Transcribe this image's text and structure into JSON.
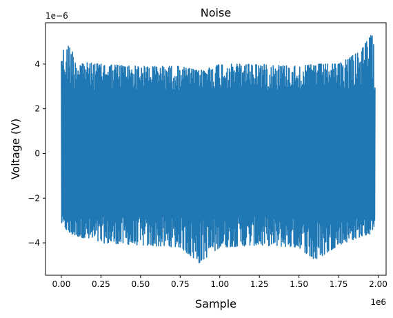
{
  "chart_data": {
    "type": "line",
    "title": "Noise",
    "xlabel": "Sample",
    "ylabel": "Voltage (V)",
    "x_offset_text": "1e6",
    "y_offset_text": "1e−6",
    "xlim": [
      -0.1,
      2.05
    ],
    "ylim": [
      -5.45,
      5.85
    ],
    "x_ticks": [
      0.0,
      0.25,
      0.5,
      0.75,
      1.0,
      1.25,
      1.5,
      1.75,
      2.0
    ],
    "x_tick_labels": [
      "0.00",
      "0.25",
      "0.50",
      "0.75",
      "1.00",
      "1.25",
      "1.50",
      "1.75",
      "2.00"
    ],
    "y_ticks": [
      -4,
      -2,
      0,
      2,
      4
    ],
    "y_tick_labels": [
      "−4",
      "−2",
      "0",
      "2",
      "4"
    ],
    "grid": false,
    "legend": "none",
    "series": [
      {
        "color": "#1f77b4",
        "x_range": [
          0.0,
          1.98
        ],
        "envelope_x": [
          0.0,
          0.02,
          0.05,
          0.1,
          0.25,
          0.5,
          0.75,
          0.87,
          1.0,
          1.25,
          1.5,
          1.6,
          1.75,
          1.9,
          1.95,
          1.98
        ],
        "envelope_upper": [
          5.0,
          4.5,
          4.9,
          4.1,
          4.0,
          3.9,
          3.9,
          3.7,
          4.0,
          4.0,
          3.9,
          4.0,
          4.0,
          4.7,
          5.3,
          5.2
        ],
        "envelope_lower": [
          -3.1,
          -3.3,
          -3.6,
          -3.7,
          -4.0,
          -4.1,
          -4.2,
          -4.9,
          -4.2,
          -4.1,
          -4.2,
          -4.8,
          -4.1,
          -3.7,
          -3.6,
          -3.2
        ]
      }
    ]
  }
}
